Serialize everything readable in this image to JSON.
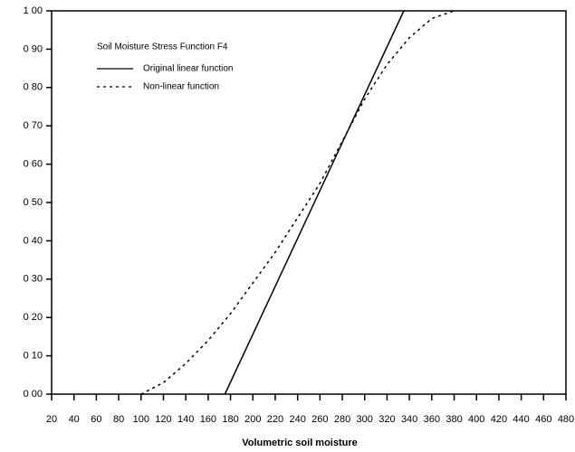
{
  "chart_data": {
    "type": "line",
    "title": "Soil Moisture Stress Function F4",
    "x_label": "Volumetric soil moisture",
    "xlim": [
      20,
      480
    ],
    "xticks": [
      20,
      40,
      60,
      80,
      100,
      120,
      140,
      160,
      180,
      200,
      220,
      240,
      260,
      280,
      300,
      320,
      340,
      360,
      380,
      400,
      420,
      440,
      460,
      480
    ],
    "ylim": [
      0,
      1
    ],
    "yticks": [
      {
        "value": 0,
        "label": "0 00"
      },
      {
        "value": 0.1,
        "label": "0 10"
      },
      {
        "value": 0.2,
        "label": "0 20"
      },
      {
        "value": 0.3,
        "label": "0 30"
      },
      {
        "value": 0.4,
        "label": "0 40"
      },
      {
        "value": 0.5,
        "label": "0 50"
      },
      {
        "value": 0.6,
        "label": "0 60"
      },
      {
        "value": 0.7,
        "label": "0 70"
      },
      {
        "value": 0.8,
        "label": "0 80"
      },
      {
        "value": 0.9,
        "label": "0 90"
      },
      {
        "value": 1,
        "label": "1 00"
      }
    ],
    "series": [
      {
        "name": "Original linear function",
        "color": "#000000",
        "dash": "solid",
        "x": [
          175,
          335
        ],
        "values": [
          0,
          1
        ]
      },
      {
        "name": "Non-linear function",
        "color": "#000000",
        "dash": "dotted",
        "x": [
          100,
          120,
          140,
          160,
          180,
          200,
          220,
          240,
          260,
          280,
          300,
          320,
          340,
          360,
          380
        ],
        "values": [
          0,
          0.03,
          0.08,
          0.14,
          0.21,
          0.29,
          0.37,
          0.46,
          0.55,
          0.66,
          0.77,
          0.86,
          0.93,
          0.98,
          1
        ]
      }
    ]
  }
}
